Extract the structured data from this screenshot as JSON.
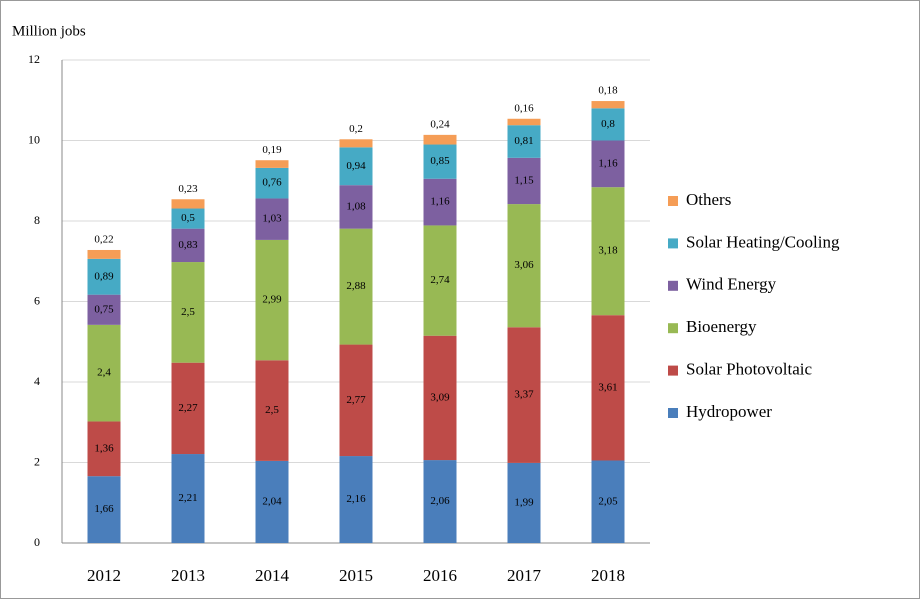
{
  "chart_data": {
    "type": "stacked_bar",
    "y_label": "Million jobs",
    "categories": [
      "2012",
      "2013",
      "2014",
      "2015",
      "2016",
      "2017",
      "2018"
    ],
    "ylim": [
      0,
      12
    ],
    "yticks": [
      0,
      2,
      4,
      6,
      8,
      10,
      12
    ],
    "grid": true,
    "series": [
      {
        "name": "Hydropower",
        "color": "#4a7ebb",
        "values": [
          1.66,
          2.21,
          2.04,
          2.16,
          2.06,
          1.99,
          2.05
        ],
        "value_labels": [
          "1,66",
          "2,21",
          "2,04",
          "2,16",
          "2,06",
          "1,99",
          "2,05"
        ]
      },
      {
        "name": "Solar Photovoltaic",
        "color": "#be4b48",
        "values": [
          1.36,
          2.27,
          2.5,
          2.77,
          3.09,
          3.37,
          3.61
        ],
        "value_labels": [
          "1,36",
          "2,27",
          "2,5",
          "2,77",
          "3,09",
          "3,37",
          "3,61"
        ]
      },
      {
        "name": "Bioenergy",
        "color": "#98b954",
        "values": [
          2.4,
          2.5,
          2.99,
          2.88,
          2.74,
          3.06,
          3.18
        ],
        "value_labels": [
          "2,4",
          "2,5",
          "2,99",
          "2,88",
          "2,74",
          "3,06",
          "3,18"
        ]
      },
      {
        "name": "Wind Energy",
        "color": "#7d60a0",
        "values": [
          0.75,
          0.83,
          1.03,
          1.08,
          1.16,
          1.15,
          1.16
        ],
        "value_labels": [
          "0,75",
          "0,83",
          "1,03",
          "1,08",
          "1,16",
          "1,15",
          "1,16"
        ]
      },
      {
        "name": "Solar Heating/Cooling",
        "color": "#46aac5",
        "values": [
          0.89,
          0.5,
          0.76,
          0.94,
          0.85,
          0.81,
          0.8
        ],
        "value_labels": [
          "0,89",
          "0,5",
          "0,76",
          "0,94",
          "0,85",
          "0,81",
          "0,8"
        ]
      },
      {
        "name": "Others",
        "color": "#f59d56",
        "values": [
          0.22,
          0.23,
          0.19,
          0.2,
          0.24,
          0.16,
          0.18
        ],
        "value_labels": [
          "0,22",
          "0,23",
          "0,19",
          "0,2",
          "0,24",
          "0,16",
          "0,18"
        ]
      }
    ]
  }
}
